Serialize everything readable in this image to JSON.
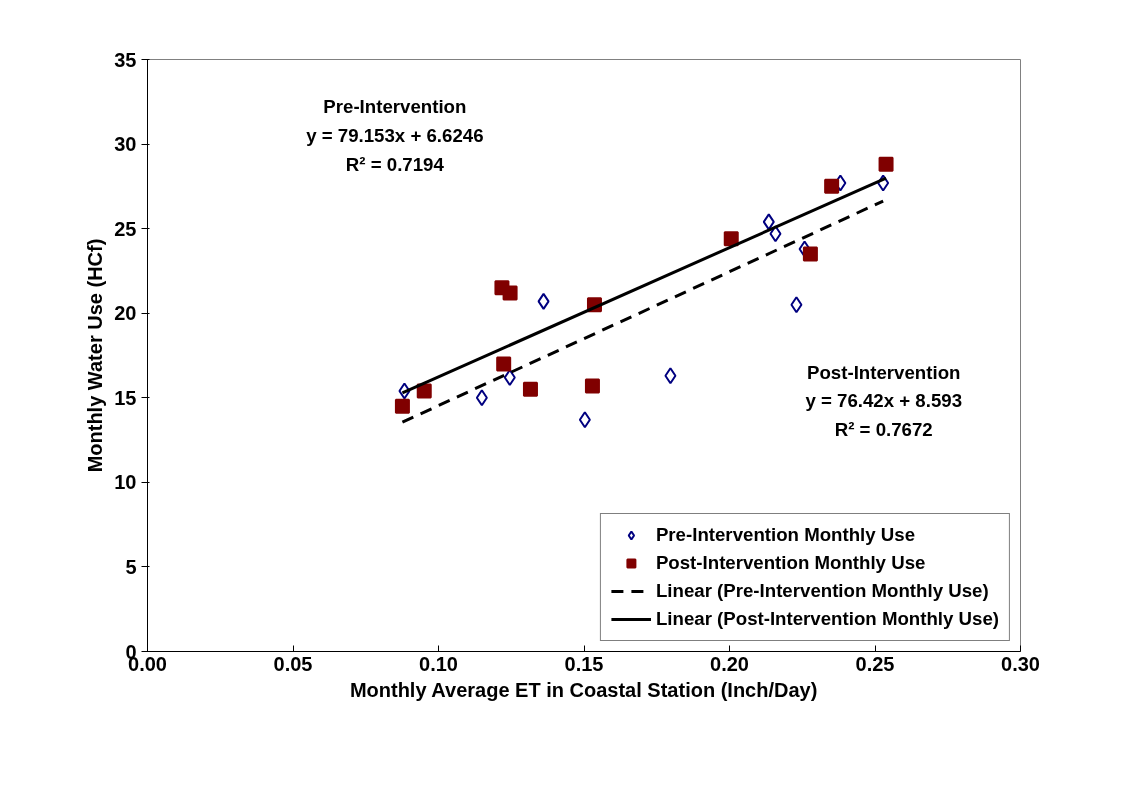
{
  "chart_data": {
    "type": "scatter",
    "xlabel": "Monthly Average ET in Coastal Station (Inch/Day)",
    "ylabel": "Monthly Water Use (HCf)",
    "xlim": [
      0,
      0.3
    ],
    "xticks": [
      {
        "value": 0,
        "label": "0.00"
      },
      {
        "value": 0.05,
        "label": "0.05"
      },
      {
        "value": 0.1,
        "label": "0.10"
      },
      {
        "value": 0.15,
        "label": "0.15"
      },
      {
        "value": 0.2,
        "label": "0.20"
      },
      {
        "value": 0.25,
        "label": "0.25"
      },
      {
        "value": 0.3,
        "label": "0.30"
      }
    ],
    "ylim": [
      0,
      35
    ],
    "yticks": [
      0,
      5,
      10,
      15,
      20,
      25,
      30,
      35
    ],
    "grid": false,
    "legend": "bottom right",
    "series": [
      {
        "name": "Pre-Intervention Monthly Use",
        "marker": "diamond",
        "color": "#000080",
        "x": [
          0.0883,
          0.1149,
          0.1245,
          0.1361,
          0.1503,
          0.1797,
          0.2135,
          0.2158,
          0.2258,
          0.223,
          0.2381,
          0.2528
        ],
        "values": [
          15.4,
          15.0,
          16.2,
          20.7,
          13.7,
          16.3,
          25.4,
          24.7,
          23.8,
          20.5,
          27.7,
          27.7
        ]
      },
      {
        "name": "Post-Intervention Monthly Use",
        "marker": "square",
        "color": "#800000",
        "x": [
          0.0876,
          0.0951,
          0.1218,
          0.1246,
          0.1224,
          0.1316,
          0.1536,
          0.1529,
          0.2006,
          0.2278,
          0.2351,
          0.2538
        ],
        "values": [
          14.5,
          15.4,
          21.5,
          21.2,
          17.0,
          15.5,
          20.5,
          15.7,
          24.4,
          23.5,
          27.5,
          28.8
        ]
      },
      {
        "name": "Linear (Pre-Intervention Monthly Use)",
        "type": "line",
        "line_style": "dashed",
        "color": "#000000",
        "x": [
          0.0876,
          0.2528
        ],
        "values": [
          13.56,
          26.63
        ]
      },
      {
        "name": "Linear (Post-Intervention Monthly Use)",
        "type": "line",
        "line_style": "solid",
        "color": "#000000",
        "x": [
          0.0876,
          0.2538
        ],
        "values": [
          15.29,
          27.99
        ]
      }
    ],
    "annotations": [
      "Pre-Intervention",
      "y = 79.153x + 6.6246",
      "R² = 0.7194",
      "Post-Intervention",
      "y = 76.42x + 8.593",
      "R² = 0.7672"
    ]
  }
}
